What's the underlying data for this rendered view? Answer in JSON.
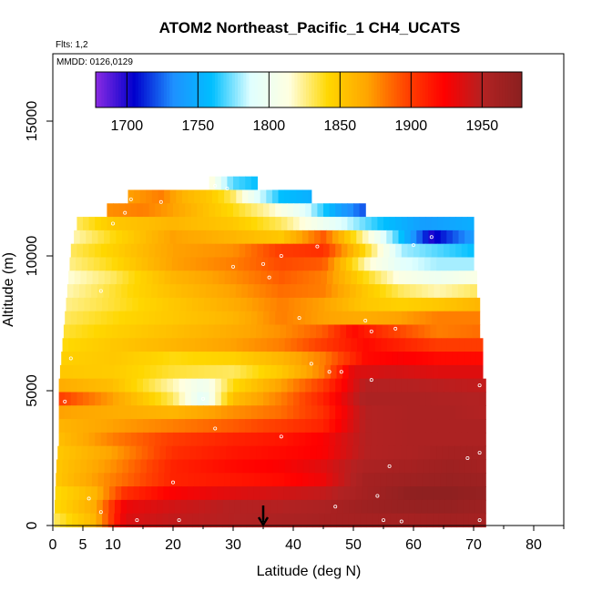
{
  "chart_data": {
    "type": "heatmap",
    "title": "ATOM2 Northeast_Pacific_1 CH4_UCATS",
    "flights_note": "Flts: 1,2",
    "dates_note": "MMDD: 0126,0129",
    "xlabel": "Latitude (deg N)",
    "ylabel": "Altitude (m)",
    "xlim": [
      0,
      85
    ],
    "ylim": [
      0,
      17500
    ],
    "x_ticks": [
      0,
      5,
      10,
      20,
      30,
      40,
      50,
      60,
      70,
      80
    ],
    "x_tick_labels": [
      "0",
      "5",
      "10",
      "20",
      "30",
      "40",
      "50",
      "60",
      "70",
      "80"
    ],
    "y_ticks": [
      0,
      5000,
      10000,
      15000
    ],
    "y_tick_labels": [
      "0",
      "5000",
      "10000",
      "15000"
    ],
    "colorbar": {
      "min": 1678,
      "max": 1978,
      "ticks": [
        1700,
        1750,
        1800,
        1850,
        1900,
        1950
      ],
      "tick_labels": [
        "1700",
        "1750",
        "1800",
        "1850",
        "1900",
        "1950"
      ],
      "colors": [
        "#8a2be2",
        "#0000cd",
        "#1e90ff",
        "#00bfff",
        "#e0ffff",
        "#ffffe0",
        "#ffd700",
        "#ffa500",
        "#ff4500",
        "#ff0000",
        "#b22222",
        "#8b2020"
      ]
    },
    "marker": {
      "latitude": 35,
      "label": "down-arrow"
    },
    "grid": false,
    "altitude_bands": [
      {
        "alt": 12700,
        "lat_min": 26,
        "lat_max": 34,
        "lat": [
          26,
          28,
          30,
          34
        ],
        "ch4": [
          1820,
          1790,
          1770,
          1760
        ]
      },
      {
        "alt": 12200,
        "lat_min": 12.5,
        "lat_max": 43,
        "lat": [
          12.5,
          18,
          22,
          26,
          30,
          34,
          38,
          43
        ],
        "ch4": [
          1870,
          1880,
          1860,
          1850,
          1830,
          1790,
          1760,
          1750
        ]
      },
      {
        "alt": 11700,
        "lat_min": 9,
        "lat_max": 52,
        "lat": [
          9,
          15,
          20,
          25,
          30,
          36,
          42,
          48,
          52
        ],
        "ch4": [
          1875,
          1880,
          1870,
          1855,
          1840,
          1820,
          1790,
          1740,
          1720
        ]
      },
      {
        "alt": 11200,
        "lat_min": 4,
        "lat_max": 70,
        "lat": [
          4,
          10,
          20,
          30,
          38,
          45,
          55,
          62,
          70
        ],
        "ch4": [
          1830,
          1850,
          1860,
          1850,
          1830,
          1800,
          1760,
          1740,
          1750
        ]
      },
      {
        "alt": 10700,
        "lat_min": 3.5,
        "lat_max": 70,
        "lat": [
          3.5,
          10,
          20,
          30,
          38,
          45,
          52,
          58,
          63,
          70
        ],
        "ch4": [
          1820,
          1840,
          1870,
          1860,
          1850,
          1890,
          1820,
          1760,
          1700,
          1740
        ]
      },
      {
        "alt": 10200,
        "lat_min": 3,
        "lat_max": 70,
        "lat": [
          3,
          10,
          20,
          30,
          38,
          45,
          52,
          58,
          64,
          70
        ],
        "ch4": [
          1830,
          1845,
          1870,
          1875,
          1900,
          1905,
          1840,
          1780,
          1770,
          1760
        ]
      },
      {
        "alt": 9700,
        "lat_min": 2.8,
        "lat_max": 70,
        "lat": [
          2.8,
          10,
          20,
          30,
          38,
          45,
          52,
          58,
          64,
          70
        ],
        "ch4": [
          1825,
          1840,
          1870,
          1880,
          1895,
          1890,
          1820,
          1790,
          1780,
          1780
        ]
      },
      {
        "alt": 9200,
        "lat_min": 2.6,
        "lat_max": 70.5,
        "lat": [
          2.6,
          10,
          20,
          30,
          38,
          45,
          52,
          58,
          64,
          70.5
        ],
        "ch4": [
          1815,
          1830,
          1860,
          1875,
          1890,
          1880,
          1840,
          1810,
          1800,
          1810
        ]
      },
      {
        "alt": 8700,
        "lat_min": 2.4,
        "lat_max": 70.5,
        "lat": [
          2.4,
          10,
          20,
          30,
          38,
          45,
          52,
          58,
          64,
          70.5
        ],
        "ch4": [
          1820,
          1835,
          1855,
          1870,
          1885,
          1880,
          1850,
          1830,
          1820,
          1830
        ]
      },
      {
        "alt": 8200,
        "lat_min": 2.2,
        "lat_max": 71,
        "lat": [
          2.2,
          10,
          20,
          30,
          38,
          45,
          52,
          58,
          64,
          71
        ],
        "ch4": [
          1825,
          1835,
          1850,
          1865,
          1880,
          1870,
          1850,
          1845,
          1850,
          1860
        ]
      },
      {
        "alt": 7700,
        "lat_min": 2,
        "lat_max": 71,
        "lat": [
          2,
          10,
          20,
          30,
          38,
          45,
          52,
          58,
          64,
          71
        ],
        "ch4": [
          1830,
          1840,
          1850,
          1860,
          1880,
          1870,
          1865,
          1870,
          1880,
          1880
        ]
      },
      {
        "alt": 7200,
        "lat_min": 1.8,
        "lat_max": 71,
        "lat": [
          1.8,
          10,
          20,
          30,
          38,
          45,
          50,
          56,
          64,
          71
        ],
        "ch4": [
          1835,
          1845,
          1855,
          1865,
          1875,
          1890,
          1920,
          1900,
          1880,
          1885
        ]
      },
      {
        "alt": 6700,
        "lat_min": 1.6,
        "lat_max": 71.5,
        "lat": [
          1.6,
          10,
          20,
          30,
          38,
          45,
          52,
          58,
          64,
          71.5
        ],
        "ch4": [
          1840,
          1850,
          1860,
          1870,
          1880,
          1900,
          1920,
          1910,
          1900,
          1900
        ]
      },
      {
        "alt": 6200,
        "lat_min": 1.4,
        "lat_max": 71.5,
        "lat": [
          1.4,
          10,
          20,
          30,
          38,
          45,
          52,
          58,
          64,
          71.5
        ],
        "ch4": [
          1845,
          1850,
          1840,
          1845,
          1860,
          1880,
          1920,
          1925,
          1920,
          1920
        ]
      },
      {
        "alt": 5700,
        "lat_min": 1.2,
        "lat_max": 71.5,
        "lat": [
          1.2,
          10,
          20,
          30,
          38,
          45,
          50,
          56,
          64,
          71.5
        ],
        "ch4": [
          1850,
          1848,
          1835,
          1830,
          1850,
          1880,
          1935,
          1940,
          1935,
          1935
        ]
      },
      {
        "alt": 5200,
        "lat_min": 1.0,
        "lat_max": 72,
        "lat": [
          1.0,
          10,
          20,
          25,
          30,
          38,
          45,
          52,
          60,
          72
        ],
        "ch4": [
          1865,
          1855,
          1820,
          1800,
          1840,
          1870,
          1900,
          1950,
          1950,
          1945
        ]
      },
      {
        "alt": 4700,
        "lat_min": 1.0,
        "lat_max": 72,
        "lat": [
          1.0,
          10,
          20,
          25,
          30,
          38,
          45,
          52,
          60,
          72
        ],
        "ch4": [
          1900,
          1870,
          1830,
          1790,
          1855,
          1880,
          1910,
          1955,
          1955,
          1950
        ]
      },
      {
        "alt": 4200,
        "lat_min": 1.0,
        "lat_max": 72,
        "lat": [
          1.0,
          10,
          20,
          30,
          38,
          45,
          52,
          60,
          66,
          72
        ],
        "ch4": [
          1870,
          1865,
          1860,
          1875,
          1885,
          1905,
          1950,
          1955,
          1955,
          1950
        ]
      },
      {
        "alt": 3700,
        "lat_min": 1.0,
        "lat_max": 72,
        "lat": [
          1.0,
          10,
          20,
          30,
          38,
          45,
          52,
          60,
          66,
          72
        ],
        "ch4": [
          1860,
          1870,
          1880,
          1890,
          1900,
          1910,
          1950,
          1955,
          1955,
          1955
        ]
      },
      {
        "alt": 3200,
        "lat_min": 1.0,
        "lat_max": 72,
        "lat": [
          1.0,
          10,
          20,
          30,
          38,
          45,
          52,
          60,
          66,
          72
        ],
        "ch4": [
          1855,
          1880,
          1900,
          1910,
          1915,
          1925,
          1950,
          1955,
          1955,
          1955
        ]
      },
      {
        "alt": 2700,
        "lat_min": 0.8,
        "lat_max": 72,
        "lat": [
          0.8,
          10,
          20,
          30,
          38,
          45,
          52,
          60,
          66,
          72
        ],
        "ch4": [
          1850,
          1870,
          1905,
          1915,
          1920,
          1925,
          1950,
          1955,
          1960,
          1958
        ]
      },
      {
        "alt": 2200,
        "lat_min": 0.6,
        "lat_max": 72,
        "lat": [
          0.6,
          10,
          20,
          30,
          38,
          45,
          52,
          60,
          66,
          72
        ],
        "ch4": [
          1850,
          1875,
          1910,
          1920,
          1925,
          1935,
          1955,
          1960,
          1965,
          1960
        ]
      },
      {
        "alt": 1700,
        "lat_min": 0.5,
        "lat_max": 72,
        "lat": [
          0.5,
          10,
          20,
          30,
          38,
          45,
          52,
          60,
          66,
          72
        ],
        "ch4": [
          1850,
          1880,
          1910,
          1915,
          1920,
          1930,
          1960,
          1965,
          1968,
          1965
        ]
      },
      {
        "alt": 1200,
        "lat_min": 0.4,
        "lat_max": 72,
        "lat": [
          0.4,
          7,
          12,
          20,
          30,
          38,
          45,
          52,
          60,
          66,
          72
        ],
        "ch4": [
          1840,
          1860,
          1905,
          1925,
          1935,
          1940,
          1945,
          1960,
          1975,
          1975,
          1970
        ]
      },
      {
        "alt": 700,
        "lat_min": 0.3,
        "lat_max": 72,
        "lat": [
          0.3,
          7,
          12,
          20,
          30,
          38,
          45,
          52,
          60,
          66,
          72
        ],
        "ch4": [
          1840,
          1865,
          1930,
          1940,
          1950,
          1950,
          1955,
          1965,
          1970,
          1970,
          1965
        ]
      },
      {
        "alt": 200,
        "lat_min": 0.2,
        "lat_max": 72,
        "lat": [
          0.2,
          7,
          12,
          20,
          30,
          38,
          45,
          52,
          60,
          66,
          72
        ],
        "ch4": [
          1830,
          1860,
          1935,
          1945,
          1950,
          1955,
          1958,
          1960,
          1960,
          1962,
          1960
        ]
      }
    ],
    "sample_points": [
      [
        27,
        12600
      ],
      [
        29,
        12500
      ],
      [
        13,
        12100
      ],
      [
        18,
        12000
      ],
      [
        12,
        11600
      ],
      [
        10,
        11200
      ],
      [
        63,
        10700
      ],
      [
        71,
        10700
      ],
      [
        3,
        10600
      ],
      [
        60,
        10400
      ],
      [
        44,
        10350
      ],
      [
        38,
        10000
      ],
      [
        35,
        9700
      ],
      [
        30,
        9600
      ],
      [
        36,
        9200
      ],
      [
        8,
        8700
      ],
      [
        41,
        7700
      ],
      [
        52,
        7600
      ],
      [
        57,
        7300
      ],
      [
        53,
        7200
      ],
      [
        3,
        6200
      ],
      [
        43,
        6000
      ],
      [
        48,
        5700
      ],
      [
        46,
        5700
      ],
      [
        53,
        5400
      ],
      [
        71,
        5200
      ],
      [
        2,
        4600
      ],
      [
        25,
        4700
      ],
      [
        27,
        3600
      ],
      [
        38,
        3300
      ],
      [
        71,
        2700
      ],
      [
        69,
        2500
      ],
      [
        56,
        2200
      ],
      [
        20,
        1600
      ],
      [
        54,
        1100
      ],
      [
        6,
        1000
      ],
      [
        47,
        700
      ],
      [
        8,
        500
      ],
      [
        14,
        200
      ],
      [
        21,
        200
      ],
      [
        55,
        200
      ],
      [
        58,
        150
      ],
      [
        71,
        200
      ],
      [
        35,
        150
      ]
    ]
  }
}
